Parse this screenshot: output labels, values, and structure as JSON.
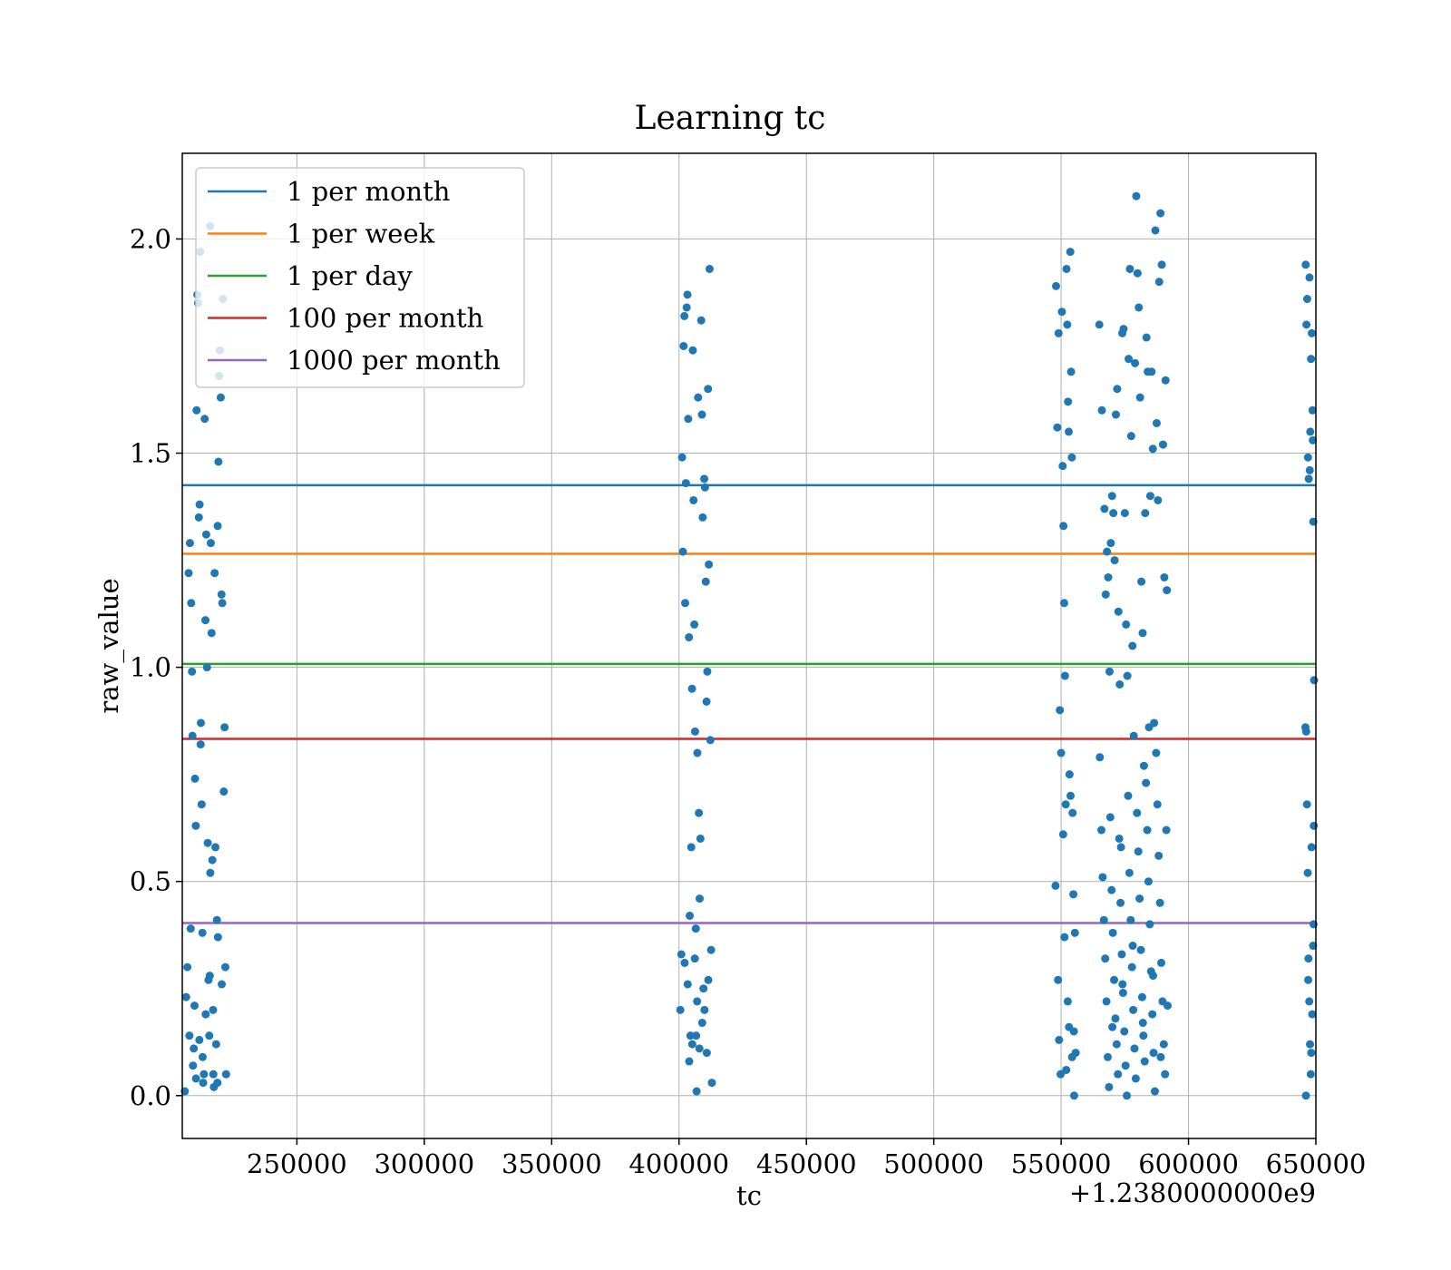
{
  "chart_data": {
    "type": "scatter",
    "title": "Learning tc",
    "xlabel": "tc",
    "ylabel": "raw_value",
    "x_offset_label": "+1.2380000000e9",
    "xlim": [
      205000,
      650000
    ],
    "ylim": [
      -0.1,
      2.2
    ],
    "xticks": [
      250000,
      300000,
      350000,
      400000,
      450000,
      500000,
      550000,
      600000,
      650000
    ],
    "yticks": [
      0.0,
      0.5,
      1.0,
      1.5,
      2.0
    ],
    "xtick_labels": [
      "250000",
      "300000",
      "350000",
      "400000",
      "450000",
      "500000",
      "550000",
      "600000",
      "650000"
    ],
    "ytick_labels": [
      "0.0",
      "0.5",
      "1.0",
      "1.5",
      "2.0"
    ],
    "grid": true,
    "legend_position": "top-left",
    "scatter_color": "#1f77b4",
    "reference_lines": [
      {
        "name": "1 per month",
        "y": 1.425,
        "color": "#1f77b4"
      },
      {
        "name": "1 per week",
        "y": 1.265,
        "color": "#ff7f0e"
      },
      {
        "name": "1 per day",
        "y": 1.008,
        "color": "#2ca02c"
      },
      {
        "name": "100 per month",
        "y": 0.833,
        "color": "#d62728"
      },
      {
        "name": "1000 per month",
        "y": 0.403,
        "color": "#9467bd"
      }
    ],
    "points": [
      [
        206000,
        0.01
      ],
      [
        206500,
        0.23
      ],
      [
        207000,
        0.3
      ],
      [
        207500,
        1.22
      ],
      [
        208000,
        1.29
      ],
      [
        208500,
        1.15
      ],
      [
        208800,
        0.99
      ],
      [
        209000,
        0.84
      ],
      [
        209500,
        0.11
      ],
      [
        209800,
        0.21
      ],
      [
        210000,
        0.74
      ],
      [
        210300,
        0.63
      ],
      [
        210600,
        1.6
      ],
      [
        210900,
        1.87
      ],
      [
        211200,
        1.85
      ],
      [
        211500,
        1.35
      ],
      [
        211800,
        1.38
      ],
      [
        212000,
        1.97
      ],
      [
        212300,
        0.87
      ],
      [
        212600,
        0.68
      ],
      [
        212900,
        0.38
      ],
      [
        213200,
        0.03
      ],
      [
        213500,
        0.05
      ],
      [
        213800,
        1.58
      ],
      [
        214100,
        1.11
      ],
      [
        214400,
        1.31
      ],
      [
        214700,
        1.0
      ],
      [
        215000,
        0.59
      ],
      [
        215300,
        0.27
      ],
      [
        215600,
        0.14
      ],
      [
        215900,
        2.03
      ],
      [
        216200,
        1.29
      ],
      [
        216500,
        1.08
      ],
      [
        216800,
        0.55
      ],
      [
        217100,
        0.2
      ],
      [
        217400,
        0.02
      ],
      [
        217700,
        1.22
      ],
      [
        218000,
        0.58
      ],
      [
        218300,
        0.12
      ],
      [
        218600,
        0.41
      ],
      [
        218900,
        1.33
      ],
      [
        219200,
        1.48
      ],
      [
        219500,
        1.68
      ],
      [
        219800,
        1.74
      ],
      [
        220100,
        1.63
      ],
      [
        220400,
        1.17
      ],
      [
        220700,
        1.15
      ],
      [
        221000,
        1.86
      ],
      [
        221300,
        0.71
      ],
      [
        221600,
        0.86
      ],
      [
        221900,
        0.3
      ],
      [
        222200,
        0.05
      ],
      [
        209200,
        0.07
      ],
      [
        210400,
        0.04
      ],
      [
        211700,
        0.13
      ],
      [
        213000,
        0.09
      ],
      [
        214200,
        0.19
      ],
      [
        215800,
        0.28
      ],
      [
        217200,
        0.05
      ],
      [
        219000,
        0.37
      ],
      [
        220500,
        0.26
      ],
      [
        207800,
        0.14
      ],
      [
        208300,
        0.39
      ],
      [
        212200,
        0.82
      ],
      [
        216000,
        0.52
      ],
      [
        218800,
        0.03
      ],
      [
        400500,
        0.2
      ],
      [
        400900,
        0.33
      ],
      [
        401200,
        1.49
      ],
      [
        401500,
        1.27
      ],
      [
        401800,
        1.75
      ],
      [
        402100,
        1.82
      ],
      [
        402400,
        1.15
      ],
      [
        402700,
        1.43
      ],
      [
        403000,
        1.84
      ],
      [
        403300,
        1.87
      ],
      [
        403600,
        1.58
      ],
      [
        403900,
        1.07
      ],
      [
        404200,
        0.42
      ],
      [
        404500,
        0.14
      ],
      [
        404800,
        0.58
      ],
      [
        405100,
        0.95
      ],
      [
        405400,
        1.74
      ],
      [
        405700,
        1.39
      ],
      [
        406000,
        1.1
      ],
      [
        406300,
        0.85
      ],
      [
        406600,
        0.39
      ],
      [
        406900,
        0.01
      ],
      [
        407200,
        0.8
      ],
      [
        407500,
        1.63
      ],
      [
        407800,
        0.66
      ],
      [
        408100,
        0.46
      ],
      [
        408400,
        0.6
      ],
      [
        408700,
        1.81
      ],
      [
        409000,
        1.59
      ],
      [
        409300,
        1.35
      ],
      [
        409600,
        0.25
      ],
      [
        409900,
        1.44
      ],
      [
        410200,
        1.42
      ],
      [
        410500,
        1.2
      ],
      [
        410800,
        0.92
      ],
      [
        411100,
        0.99
      ],
      [
        411400,
        1.65
      ],
      [
        411700,
        1.24
      ],
      [
        412000,
        1.93
      ],
      [
        412300,
        0.83
      ],
      [
        412600,
        0.34
      ],
      [
        412900,
        0.03
      ],
      [
        403400,
        0.26
      ],
      [
        404000,
        0.08
      ],
      [
        405200,
        0.12
      ],
      [
        406200,
        0.32
      ],
      [
        407100,
        0.22
      ],
      [
        408000,
        0.11
      ],
      [
        409100,
        0.17
      ],
      [
        410000,
        0.2
      ],
      [
        410900,
        0.1
      ],
      [
        411500,
        0.27
      ],
      [
        402200,
        0.31
      ],
      [
        406700,
        0.14
      ],
      [
        548000,
        1.89
      ],
      [
        548500,
        1.56
      ],
      [
        549000,
        1.78
      ],
      [
        549500,
        0.9
      ],
      [
        550000,
        0.8
      ],
      [
        550300,
        1.83
      ],
      [
        550600,
        1.47
      ],
      [
        550900,
        1.33
      ],
      [
        551200,
        1.15
      ],
      [
        551500,
        0.98
      ],
      [
        551800,
        0.68
      ],
      [
        552100,
        1.93
      ],
      [
        552400,
        1.8
      ],
      [
        552700,
        1.62
      ],
      [
        553000,
        1.55
      ],
      [
        553300,
        0.75
      ],
      [
        553600,
        1.97
      ],
      [
        553900,
        1.69
      ],
      [
        554200,
        1.49
      ],
      [
        554500,
        0.66
      ],
      [
        554800,
        0.47
      ],
      [
        555100,
        0.0
      ],
      [
        555400,
        0.38
      ],
      [
        555700,
        0.1
      ],
      [
        547800,
        0.49
      ],
      [
        548800,
        0.27
      ],
      [
        549200,
        0.13
      ],
      [
        549800,
        0.05
      ],
      [
        550800,
        0.61
      ],
      [
        551300,
        0.37
      ],
      [
        552000,
        0.06
      ],
      [
        552600,
        0.22
      ],
      [
        553100,
        0.16
      ],
      [
        553700,
        0.7
      ],
      [
        554300,
        0.09
      ],
      [
        555000,
        0.15
      ],
      [
        565000,
        1.8
      ],
      [
        566000,
        1.6
      ],
      [
        567000,
        1.37
      ],
      [
        567500,
        1.17
      ],
      [
        568000,
        1.27
      ],
      [
        568500,
        1.21
      ],
      [
        569000,
        0.99
      ],
      [
        569500,
        1.29
      ],
      [
        570000,
        1.4
      ],
      [
        570500,
        1.36
      ],
      [
        571000,
        1.25
      ],
      [
        571500,
        1.59
      ],
      [
        572000,
        1.65
      ],
      [
        572500,
        1.13
      ],
      [
        573000,
        0.96
      ],
      [
        573500,
        0.58
      ],
      [
        574000,
        1.78
      ],
      [
        574500,
        1.79
      ],
      [
        575000,
        1.36
      ],
      [
        575500,
        1.1
      ],
      [
        576000,
        0.98
      ],
      [
        576500,
        1.72
      ],
      [
        577000,
        1.93
      ],
      [
        577500,
        1.54
      ],
      [
        578000,
        1.05
      ],
      [
        578500,
        0.84
      ],
      [
        579000,
        1.71
      ],
      [
        579500,
        2.1
      ],
      [
        580000,
        1.92
      ],
      [
        580500,
        1.84
      ],
      [
        581000,
        1.63
      ],
      [
        581500,
        1.2
      ],
      [
        582000,
        1.08
      ],
      [
        582500,
        0.77
      ],
      [
        583000,
        1.36
      ],
      [
        583500,
        1.77
      ],
      [
        584000,
        1.69
      ],
      [
        584500,
        0.86
      ],
      [
        585000,
        1.4
      ],
      [
        585500,
        1.69
      ],
      [
        586000,
        1.51
      ],
      [
        586500,
        0.87
      ],
      [
        587000,
        2.02
      ],
      [
        587500,
        1.57
      ],
      [
        588000,
        1.39
      ],
      [
        588500,
        1.9
      ],
      [
        589000,
        2.06
      ],
      [
        589500,
        1.94
      ],
      [
        590000,
        1.52
      ],
      [
        590500,
        1.21
      ],
      [
        591000,
        1.67
      ],
      [
        591500,
        1.18
      ],
      [
        565200,
        0.79
      ],
      [
        565800,
        0.62
      ],
      [
        566300,
        0.51
      ],
      [
        566800,
        0.41
      ],
      [
        567300,
        0.32
      ],
      [
        567800,
        0.22
      ],
      [
        568300,
        0.09
      ],
      [
        568800,
        0.02
      ],
      [
        569300,
        0.65
      ],
      [
        569800,
        0.48
      ],
      [
        570300,
        0.38
      ],
      [
        570800,
        0.27
      ],
      [
        571300,
        0.18
      ],
      [
        571800,
        0.12
      ],
      [
        572300,
        0.05
      ],
      [
        572800,
        0.6
      ],
      [
        573300,
        0.45
      ],
      [
        573800,
        0.33
      ],
      [
        574300,
        0.24
      ],
      [
        574800,
        0.15
      ],
      [
        575300,
        0.07
      ],
      [
        575800,
        0.0
      ],
      [
        576300,
        0.7
      ],
      [
        576800,
        0.52
      ],
      [
        577300,
        0.41
      ],
      [
        577800,
        0.3
      ],
      [
        578300,
        0.2
      ],
      [
        578800,
        0.11
      ],
      [
        579300,
        0.04
      ],
      [
        579800,
        0.66
      ],
      [
        580300,
        0.57
      ],
      [
        580800,
        0.46
      ],
      [
        581300,
        0.34
      ],
      [
        581800,
        0.23
      ],
      [
        582300,
        0.14
      ],
      [
        582800,
        0.08
      ],
      [
        583300,
        0.73
      ],
      [
        583800,
        0.62
      ],
      [
        584300,
        0.5
      ],
      [
        584800,
        0.4
      ],
      [
        585300,
        0.29
      ],
      [
        585800,
        0.19
      ],
      [
        586300,
        0.1
      ],
      [
        586800,
        0.01
      ],
      [
        587300,
        0.8
      ],
      [
        587800,
        0.68
      ],
      [
        588300,
        0.56
      ],
      [
        588800,
        0.45
      ],
      [
        589300,
        0.31
      ],
      [
        589800,
        0.22
      ],
      [
        590300,
        0.12
      ],
      [
        590800,
        0.05
      ],
      [
        591300,
        0.62
      ],
      [
        591800,
        0.21
      ],
      [
        570100,
        0.16
      ],
      [
        574100,
        0.26
      ],
      [
        578100,
        0.35
      ],
      [
        582100,
        0.17
      ],
      [
        586100,
        0.28
      ],
      [
        589100,
        0.09
      ],
      [
        646000,
        1.94
      ],
      [
        646300,
        1.8
      ],
      [
        646600,
        1.86
      ],
      [
        646900,
        1.49
      ],
      [
        647200,
        1.44
      ],
      [
        647500,
        1.91
      ],
      [
        647800,
        1.55
      ],
      [
        648100,
        1.72
      ],
      [
        648400,
        1.78
      ],
      [
        648700,
        1.6
      ],
      [
        649000,
        1.34
      ],
      [
        649300,
        0.97
      ],
      [
        646200,
        0.85
      ],
      [
        646500,
        0.68
      ],
      [
        646800,
        0.52
      ],
      [
        647100,
        0.32
      ],
      [
        647400,
        0.22
      ],
      [
        647700,
        0.12
      ],
      [
        648000,
        0.05
      ],
      [
        648300,
        0.58
      ],
      [
        648600,
        0.19
      ],
      [
        648900,
        0.35
      ],
      [
        649200,
        0.63
      ],
      [
        646100,
        0.0
      ],
      [
        647000,
        0.27
      ],
      [
        648200,
        0.1
      ],
      [
        649100,
        0.4
      ],
      [
        645900,
        0.86
      ],
      [
        647600,
        1.46
      ],
      [
        648800,
        1.53
      ]
    ]
  }
}
